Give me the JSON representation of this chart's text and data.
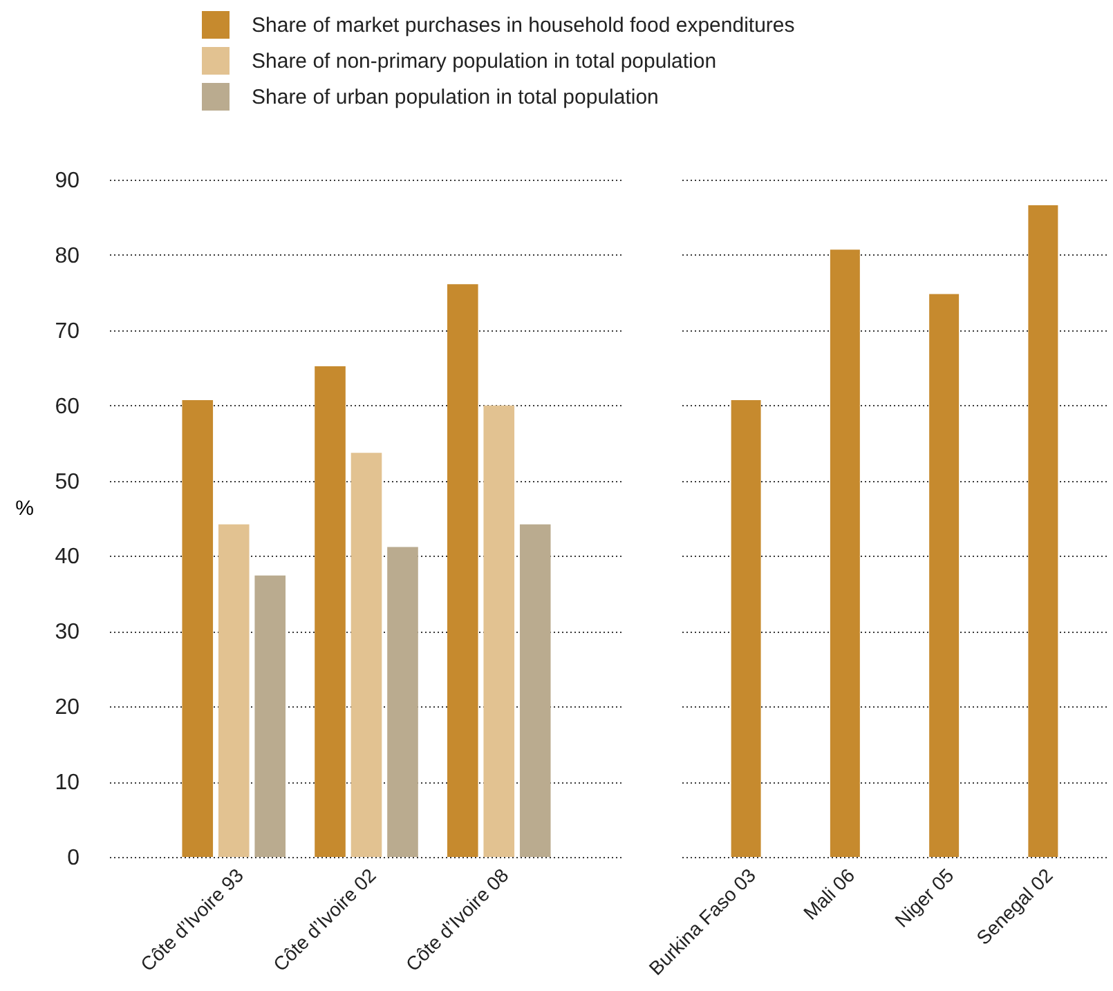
{
  "chart_data": [
    {
      "type": "bar",
      "ylabel": "%",
      "categories": [
        "Côte d’Ivoire 93",
        "Côte d’Ivoire 02",
        "Côte d’Ivoire 08"
      ],
      "ylim": [
        0,
        90
      ],
      "yticks": [
        0,
        10,
        20,
        30,
        40,
        50,
        60,
        70,
        80,
        90
      ],
      "grid": "y",
      "legend": "top",
      "series": [
        {
          "name": "Share of market purchases in household food expenditures",
          "color": "#c68a2e",
          "values": [
            60.7,
            65.2,
            76.1
          ]
        },
        {
          "name": "Share of non-primary population in total population",
          "color": "#e2c291",
          "values": [
            44.2,
            53.7,
            60.0
          ]
        },
        {
          "name": "Share of urban population in total population",
          "color": "#baab8f",
          "values": [
            37.4,
            41.2,
            44.2
          ]
        }
      ]
    },
    {
      "type": "bar",
      "categories": [
        "Burkina Faso 03",
        "Mali 06",
        "Niger 05",
        "Senegal 02"
      ],
      "ylim": [
        0,
        90
      ],
      "yticks": [
        0,
        10,
        20,
        30,
        40,
        50,
        60,
        70,
        80,
        90
      ],
      "grid": "y",
      "tick_labels": "x",
      "series": [
        {
          "color": "#c68a2e",
          "values": [
            60.7,
            80.7,
            74.8,
            86.6
          ]
        }
      ]
    }
  ]
}
